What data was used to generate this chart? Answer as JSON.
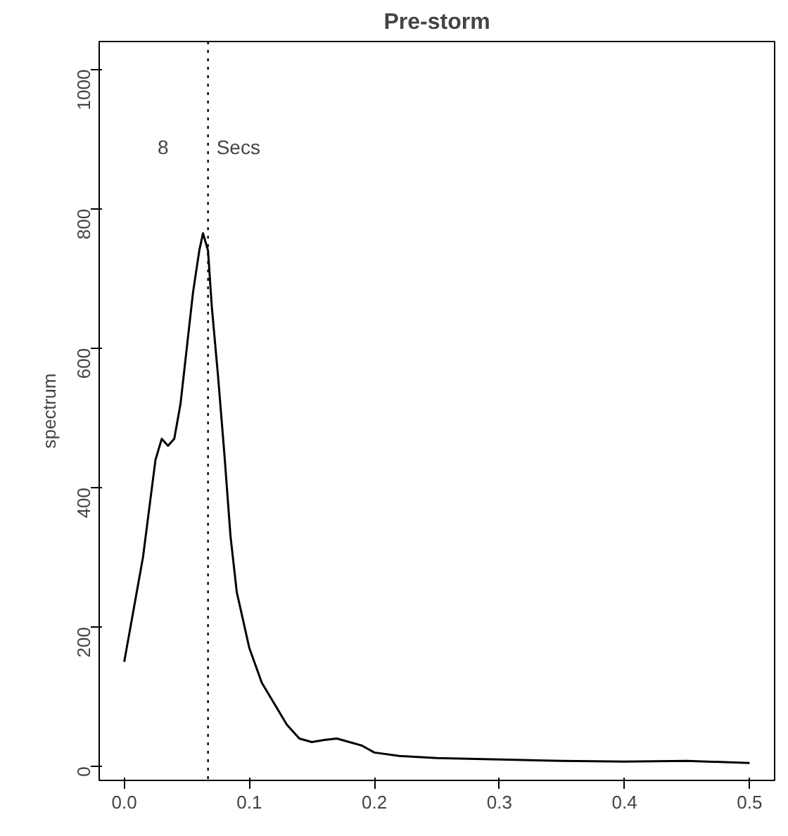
{
  "chart_data": {
    "type": "line",
    "title": "Pre-storm",
    "ylabel": "spectrum",
    "x": [
      0.0,
      0.005,
      0.01,
      0.015,
      0.02,
      0.025,
      0.03,
      0.035,
      0.04,
      0.045,
      0.05,
      0.055,
      0.06,
      0.063,
      0.067,
      0.07,
      0.075,
      0.08,
      0.085,
      0.09,
      0.095,
      0.1,
      0.11,
      0.12,
      0.13,
      0.14,
      0.15,
      0.16,
      0.17,
      0.18,
      0.19,
      0.2,
      0.22,
      0.25,
      0.3,
      0.35,
      0.4,
      0.45,
      0.5
    ],
    "series": [
      {
        "color": "#000000",
        "values": [
          150,
          200,
          250,
          300,
          370,
          440,
          470,
          460,
          470,
          520,
          600,
          680,
          740,
          765,
          740,
          660,
          560,
          450,
          330,
          250,
          210,
          170,
          120,
          90,
          60,
          40,
          35,
          38,
          40,
          35,
          30,
          20,
          15,
          12,
          10,
          8,
          7,
          8,
          5
        ]
      }
    ],
    "xlim": [
      -0.02,
      0.52
    ],
    "ylim": [
      -20,
      1040
    ],
    "xticks": [
      {
        "value": 0,
        "label": "0.0"
      },
      {
        "value": 0.1,
        "label": "0.1"
      },
      {
        "value": 0.2,
        "label": "0.2"
      },
      {
        "value": 0.3,
        "label": "0.3"
      },
      {
        "value": 0.4,
        "label": "0.4"
      },
      {
        "value": 0.5,
        "label": "0.5"
      }
    ],
    "yticks": [
      0,
      200,
      400,
      600,
      800,
      1000
    ],
    "ref_lines": [
      {
        "axis": "x",
        "value": 0.067,
        "label": null,
        "line_style": "dotted",
        "color": "#000000"
      }
    ],
    "annotations": [
      "8",
      "Secs"
    ],
    "grid": false,
    "marker": "none",
    "line_style": "solid"
  }
}
